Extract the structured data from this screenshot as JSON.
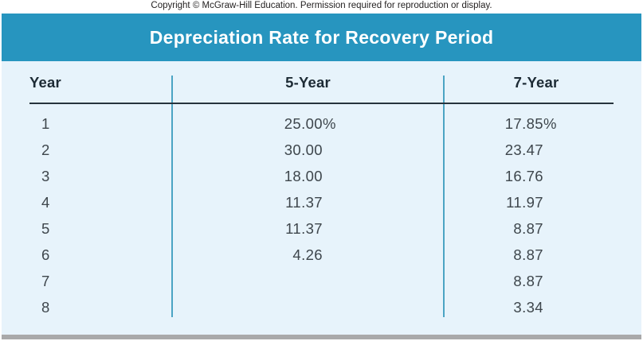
{
  "copyright": "Copyright © McGraw-Hill Education. Permission required for reproduction or display.",
  "table": {
    "title": "Depreciation Rate for Recovery Period",
    "columns": [
      "Year",
      "5-Year",
      "7-Year"
    ],
    "rows": [
      {
        "year": "1",
        "five": "25.00",
        "five_pct": "%",
        "seven": "17.85",
        "seven_pct": "%"
      },
      {
        "year": "2",
        "five": "30.00",
        "seven": "23.47"
      },
      {
        "year": "3",
        "five": "18.00",
        "seven": "16.76"
      },
      {
        "year": "4",
        "five": "11.37",
        "seven": "11.97"
      },
      {
        "year": "5",
        "five": "11.37",
        "seven": "8.87"
      },
      {
        "year": "6",
        "five": "4.26",
        "seven": "8.87"
      },
      {
        "year": "7",
        "five": "",
        "seven": "8.87"
      },
      {
        "year": "8",
        "five": "",
        "seven": "3.34"
      }
    ]
  },
  "colors": {
    "title_bar": "#2795bf",
    "table_background": "#e7f3fb",
    "column_divider": "#4ba4c4",
    "header_underline": "#26333c",
    "header_text": "#1d2b35",
    "value_text": "#3e464c",
    "bottom_bar": "#a9a9aa"
  }
}
